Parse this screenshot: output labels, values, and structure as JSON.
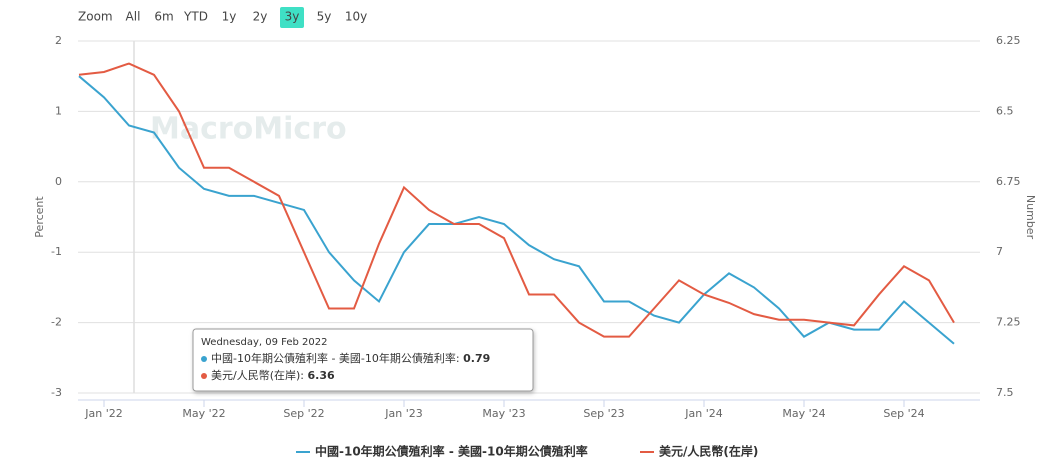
{
  "range_selector": {
    "label": "Zoom",
    "buttons": [
      "All",
      "6m",
      "YTD",
      "1y",
      "2y",
      "3y",
      "5y",
      "10y"
    ],
    "selected": "3y"
  },
  "watermark": "MacroMicro",
  "chart_data": {
    "type": "line",
    "y_label": "Percent",
    "y2_label": "Number",
    "categories": [
      null,
      "Jan '22",
      null,
      null,
      null,
      "May '22",
      null,
      null,
      null,
      "Sep '22",
      null,
      null,
      null,
      "Jan '23",
      null,
      null,
      null,
      "May '23",
      null,
      null,
      null,
      "Sep '23",
      null,
      null,
      null,
      "Jan '24",
      null,
      null,
      null,
      "May '24",
      null,
      null,
      null,
      "Sep '24",
      null,
      null
    ],
    "ylim": [
      -3,
      2
    ],
    "yticks": [
      -3,
      -2,
      -1,
      0,
      1,
      2
    ],
    "y2lim": [
      7.5,
      6.25
    ],
    "y2ticks": [
      7.5,
      7.25,
      7,
      6.75,
      6.5,
      6.25
    ],
    "grid": true,
    "series": [
      {
        "name": "中國-10年期公債殖利率 - 美國-10年期公債殖利率",
        "color": "#3aa3cf",
        "values": [
          1.5,
          1.2,
          0.8,
          0.7,
          0.2,
          -0.1,
          -0.2,
          -0.2,
          -0.3,
          -0.4,
          -1.0,
          -1.4,
          -1.7,
          -1.0,
          -0.6,
          -0.6,
          -0.5,
          -0.6,
          -0.9,
          -1.1,
          -1.2,
          -1.7,
          -1.7,
          -1.9,
          -2.0,
          -1.6,
          -1.3,
          -1.5,
          -1.8,
          -2.2,
          -2.0,
          -2.1,
          -2.1,
          -1.7,
          -2.0,
          -2.3
        ]
      },
      {
        "name": "美元/人民幣(在岸)",
        "color": "#e35b43",
        "axis": "y2",
        "values": [
          6.37,
          6.36,
          6.33,
          6.37,
          6.5,
          6.7,
          6.7,
          6.75,
          6.8,
          7.0,
          7.2,
          7.2,
          6.97,
          6.77,
          6.85,
          6.9,
          6.9,
          6.95,
          7.15,
          7.15,
          7.25,
          7.3,
          7.3,
          7.2,
          7.1,
          7.15,
          7.18,
          7.22,
          7.24,
          7.24,
          7.25,
          7.26,
          7.15,
          7.05,
          7.1,
          7.25
        ]
      }
    ],
    "tooltip": {
      "date": "Wednesday, 09 Feb 2022",
      "items": [
        {
          "name": "中國-10年期公債殖利率 - 美國-10年期公債殖利率",
          "value": 0.79
        },
        {
          "name": "美元/人民幣(在岸)",
          "value": 6.36
        }
      ]
    }
  }
}
